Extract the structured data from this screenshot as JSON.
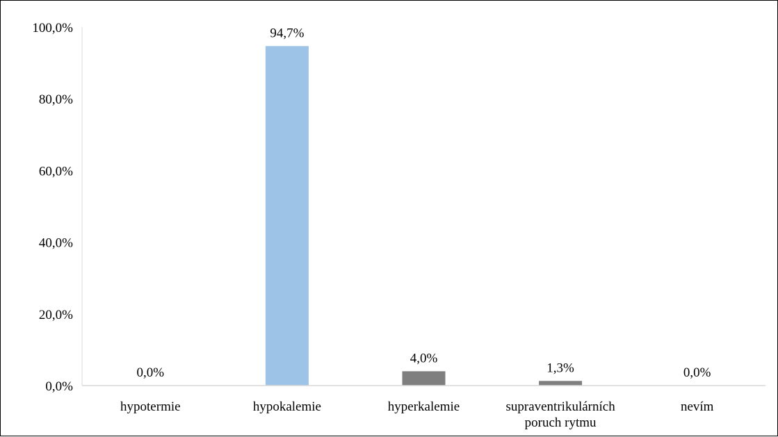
{
  "chart_data": {
    "type": "bar",
    "title": "",
    "xlabel": "",
    "ylabel": "",
    "categories": [
      [
        "hypotermie"
      ],
      [
        "hypokalemie"
      ],
      [
        "hyperkalemie"
      ],
      [
        "supraventrikulárních",
        "poruch rytmu"
      ],
      [
        "nevím"
      ]
    ],
    "values": [
      0.0,
      94.7,
      4.0,
      1.3,
      0.0
    ],
    "data_labels": [
      "0,0%",
      "94,7%",
      "4,0%",
      "1,3%",
      "0,0%"
    ],
    "bar_colors": [
      "#7f7f7f",
      "#9dc3e6",
      "#7f7f7f",
      "#7f7f7f",
      "#7f7f7f"
    ],
    "ylim": [
      0,
      100
    ],
    "yticks": [
      0,
      20,
      40,
      60,
      80,
      100
    ],
    "ytick_labels": [
      "0,0%",
      "20,0%",
      "40,0%",
      "60,0%",
      "80,0%",
      "100,0%"
    ],
    "grid": false,
    "legend": "none"
  }
}
